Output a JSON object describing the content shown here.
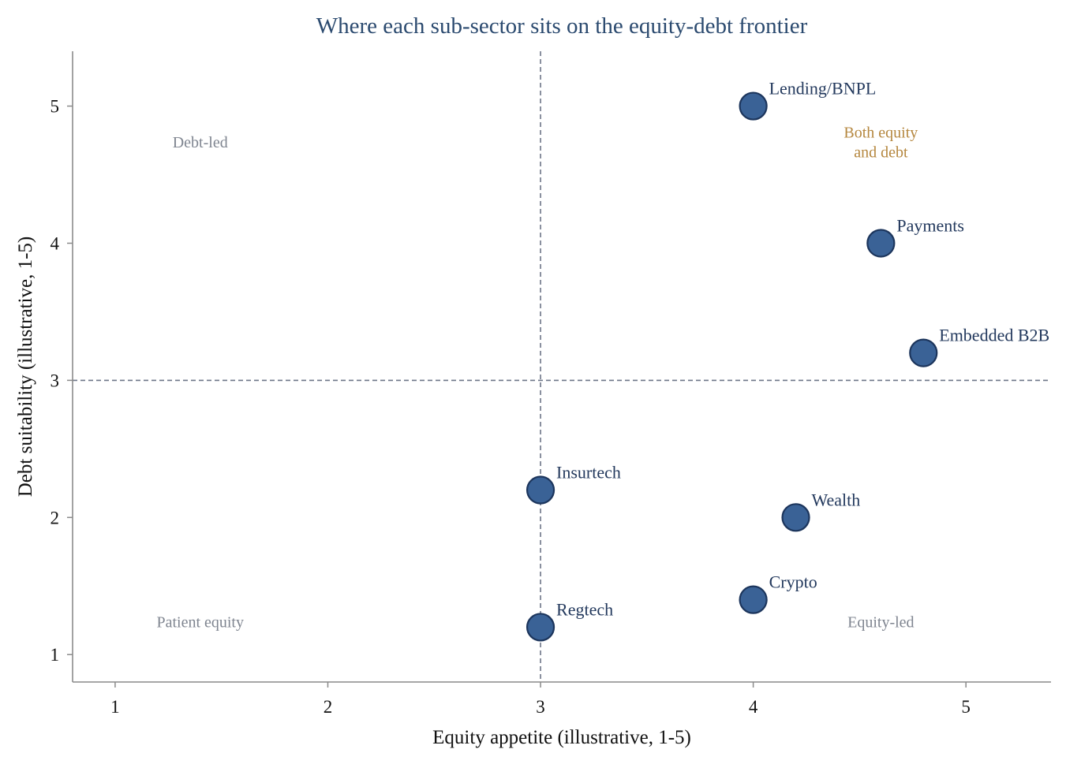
{
  "chart_data": {
    "type": "scatter",
    "title": "Where each sub-sector sits on the equity-debt frontier",
    "xlabel": "Equity appetite (illustrative, 1-5)",
    "ylabel": "Debt suitability (illustrative, 1-5)",
    "xlim": [
      0.8,
      5.4
    ],
    "ylim": [
      0.8,
      5.4
    ],
    "xticks": [
      1,
      2,
      3,
      4,
      5
    ],
    "yticks": [
      1,
      2,
      3,
      4,
      5
    ],
    "grid": false,
    "reference_lines": {
      "x": 3,
      "y": 3
    },
    "points": [
      {
        "label": "Lending/BNPL",
        "x": 4.0,
        "y": 5.0
      },
      {
        "label": "Payments",
        "x": 4.6,
        "y": 4.0
      },
      {
        "label": "Embedded B2B",
        "x": 4.8,
        "y": 3.2
      },
      {
        "label": "Insurtech",
        "x": 3.0,
        "y": 2.2
      },
      {
        "label": "Wealth",
        "x": 4.2,
        "y": 2.0
      },
      {
        "label": "Crypto",
        "x": 4.0,
        "y": 1.4
      },
      {
        "label": "Regtech",
        "x": 3.0,
        "y": 1.2
      }
    ],
    "quadrant_labels": [
      {
        "text": "Debt-led",
        "x": 1.4,
        "y": 4.74,
        "style": "muted"
      },
      {
        "text": "Both equity\nand debt",
        "x": 4.6,
        "y": 4.74,
        "style": "accent"
      },
      {
        "text": "Patient equity",
        "x": 1.4,
        "y": 1.24,
        "style": "muted"
      },
      {
        "text": "Equity-led",
        "x": 4.6,
        "y": 1.24,
        "style": "muted"
      }
    ],
    "colors": {
      "point_fill": "#3a6296",
      "point_edge": "#1c355c",
      "title": "#2b4a6f",
      "point_label": "#23395d",
      "quadrant_muted": "#7f8590",
      "quadrant_accent": "#b5873f",
      "reference_line": "#6d7588"
    }
  }
}
